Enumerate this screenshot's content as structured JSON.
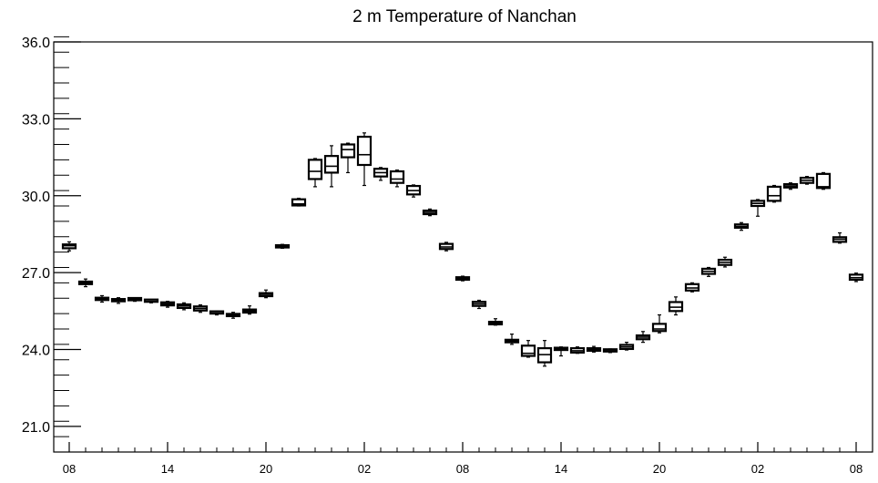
{
  "chart_data": {
    "type": "box",
    "title": "2 m Temperature of Nanchan",
    "xlabel": "",
    "ylabel": "",
    "ylim": [
      20.0,
      36.0
    ],
    "y_ticks": [
      {
        "value": 21.0,
        "label": "21.0"
      },
      {
        "value": 24.0,
        "label": "24.0"
      },
      {
        "value": 27.0,
        "label": "27.0"
      },
      {
        "value": 30.0,
        "label": "30.0"
      },
      {
        "value": 33.0,
        "label": "33.0"
      },
      {
        "value": 36.0,
        "label": "36.0"
      }
    ],
    "y_minor_step": 0.6,
    "x_range": [
      0,
      49
    ],
    "x_ticks": [
      {
        "index": 0,
        "label": "08"
      },
      {
        "index": 6,
        "label": "14"
      },
      {
        "index": 12,
        "label": "20"
      },
      {
        "index": 18,
        "label": "02"
      },
      {
        "index": 24,
        "label": "08"
      },
      {
        "index": 30,
        "label": "14"
      },
      {
        "index": 36,
        "label": "20"
      },
      {
        "index": 42,
        "label": "02"
      },
      {
        "index": 48,
        "label": "08"
      }
    ],
    "boxes": [
      {
        "x": 0,
        "min": 27.85,
        "q1": 27.95,
        "median": 28.05,
        "q3": 28.1,
        "max": 28.2
      },
      {
        "x": 1,
        "min": 26.45,
        "q1": 26.55,
        "median": 26.6,
        "q3": 26.65,
        "max": 26.75
      },
      {
        "x": 2,
        "min": 25.85,
        "q1": 25.93,
        "median": 25.98,
        "q3": 26.02,
        "max": 26.1
      },
      {
        "x": 3,
        "min": 25.8,
        "q1": 25.88,
        "median": 25.92,
        "q3": 25.96,
        "max": 26.02
      },
      {
        "x": 4,
        "min": 25.88,
        "q1": 25.92,
        "median": 25.95,
        "q3": 25.98,
        "max": 26.02
      },
      {
        "x": 5,
        "min": 25.82,
        "q1": 25.86,
        "median": 25.88,
        "q3": 25.9,
        "max": 25.94
      },
      {
        "x": 6,
        "min": 25.65,
        "q1": 25.72,
        "median": 25.78,
        "q3": 25.84,
        "max": 25.88
      },
      {
        "x": 7,
        "min": 25.55,
        "q1": 25.62,
        "median": 25.7,
        "q3": 25.76,
        "max": 25.82
      },
      {
        "x": 8,
        "min": 25.45,
        "q1": 25.52,
        "median": 25.6,
        "q3": 25.68,
        "max": 25.74
      },
      {
        "x": 9,
        "min": 25.35,
        "q1": 25.4,
        "median": 25.42,
        "q3": 25.45,
        "max": 25.5
      },
      {
        "x": 10,
        "min": 25.22,
        "q1": 25.3,
        "median": 25.34,
        "q3": 25.38,
        "max": 25.45
      },
      {
        "x": 11,
        "min": 25.38,
        "q1": 25.44,
        "median": 25.5,
        "q3": 25.56,
        "max": 25.7
      },
      {
        "x": 12,
        "min": 26.02,
        "q1": 26.08,
        "median": 26.15,
        "q3": 26.2,
        "max": 26.32
      },
      {
        "x": 13,
        "min": 27.95,
        "q1": 27.98,
        "median": 28.02,
        "q3": 28.06,
        "max": 28.1
      },
      {
        "x": 14,
        "min": 29.6,
        "q1": 29.62,
        "median": 29.68,
        "q3": 29.86,
        "max": 29.9
      },
      {
        "x": 15,
        "min": 30.35,
        "q1": 30.65,
        "median": 30.95,
        "q3": 31.4,
        "max": 31.45
      },
      {
        "x": 16,
        "min": 30.35,
        "q1": 30.9,
        "median": 31.15,
        "q3": 31.55,
        "max": 31.95
      },
      {
        "x": 17,
        "min": 30.9,
        "q1": 31.5,
        "median": 31.8,
        "q3": 32.0,
        "max": 32.05
      },
      {
        "x": 18,
        "min": 30.4,
        "q1": 31.2,
        "median": 31.6,
        "q3": 32.3,
        "max": 32.45
      },
      {
        "x": 19,
        "min": 30.6,
        "q1": 30.75,
        "median": 30.9,
        "q3": 31.05,
        "max": 31.1
      },
      {
        "x": 20,
        "min": 30.35,
        "q1": 30.5,
        "median": 30.65,
        "q3": 30.95,
        "max": 31.0
      },
      {
        "x": 21,
        "min": 29.95,
        "q1": 30.05,
        "median": 30.2,
        "q3": 30.38,
        "max": 30.42
      },
      {
        "x": 22,
        "min": 29.22,
        "q1": 29.28,
        "median": 29.35,
        "q3": 29.42,
        "max": 29.48
      },
      {
        "x": 23,
        "min": 27.85,
        "q1": 27.92,
        "median": 28.0,
        "q3": 28.12,
        "max": 28.18
      },
      {
        "x": 24,
        "min": 26.68,
        "q1": 26.72,
        "median": 26.78,
        "q3": 26.82,
        "max": 26.86
      },
      {
        "x": 25,
        "min": 25.6,
        "q1": 25.7,
        "median": 25.78,
        "q3": 25.86,
        "max": 25.92
      },
      {
        "x": 26,
        "min": 24.95,
        "q1": 24.98,
        "median": 25.03,
        "q3": 25.08,
        "max": 25.2
      },
      {
        "x": 27,
        "min": 24.2,
        "q1": 24.28,
        "median": 24.33,
        "q3": 24.38,
        "max": 24.6
      },
      {
        "x": 28,
        "min": 23.7,
        "q1": 23.75,
        "median": 23.85,
        "q3": 24.15,
        "max": 24.35
      },
      {
        "x": 29,
        "min": 23.35,
        "q1": 23.5,
        "median": 23.8,
        "q3": 24.05,
        "max": 24.35
      },
      {
        "x": 30,
        "min": 23.75,
        "q1": 23.98,
        "median": 24.02,
        "q3": 24.05,
        "max": 24.1
      },
      {
        "x": 31,
        "min": 23.85,
        "q1": 23.88,
        "median": 23.95,
        "q3": 24.05,
        "max": 24.1
      },
      {
        "x": 32,
        "min": 23.9,
        "q1": 23.95,
        "median": 24.0,
        "q3": 24.05,
        "max": 24.12
      },
      {
        "x": 33,
        "min": 23.88,
        "q1": 23.92,
        "median": 23.95,
        "q3": 23.98,
        "max": 24.02
      },
      {
        "x": 34,
        "min": 23.98,
        "q1": 24.02,
        "median": 24.1,
        "q3": 24.18,
        "max": 24.28
      },
      {
        "x": 35,
        "min": 24.28,
        "q1": 24.4,
        "median": 24.48,
        "q3": 24.55,
        "max": 24.7
      },
      {
        "x": 36,
        "min": 24.65,
        "q1": 24.72,
        "median": 24.8,
        "q3": 25.0,
        "max": 25.35
      },
      {
        "x": 37,
        "min": 25.35,
        "q1": 25.5,
        "median": 25.65,
        "q3": 25.85,
        "max": 26.05
      },
      {
        "x": 38,
        "min": 26.25,
        "q1": 26.3,
        "median": 26.4,
        "q3": 26.55,
        "max": 26.6
      },
      {
        "x": 39,
        "min": 26.85,
        "q1": 26.95,
        "median": 27.05,
        "q3": 27.15,
        "max": 27.2
      },
      {
        "x": 40,
        "min": 27.22,
        "q1": 27.3,
        "median": 27.4,
        "q3": 27.5,
        "max": 27.6
      },
      {
        "x": 41,
        "min": 28.65,
        "q1": 28.75,
        "median": 28.8,
        "q3": 28.88,
        "max": 28.95
      },
      {
        "x": 42,
        "min": 29.2,
        "q1": 29.6,
        "median": 29.7,
        "q3": 29.8,
        "max": 29.85
      },
      {
        "x": 43,
        "min": 29.75,
        "q1": 29.8,
        "median": 30.0,
        "q3": 30.35,
        "max": 30.4
      },
      {
        "x": 44,
        "min": 30.25,
        "q1": 30.32,
        "median": 30.38,
        "q3": 30.45,
        "max": 30.5
      },
      {
        "x": 45,
        "min": 30.45,
        "q1": 30.5,
        "median": 30.6,
        "q3": 30.7,
        "max": 30.75
      },
      {
        "x": 46,
        "min": 30.25,
        "q1": 30.3,
        "median": 30.35,
        "q3": 30.85,
        "max": 30.9
      },
      {
        "x": 47,
        "min": 28.15,
        "q1": 28.2,
        "median": 28.3,
        "q3": 28.38,
        "max": 28.55
      },
      {
        "x": 48,
        "min": 26.65,
        "q1": 26.72,
        "median": 26.8,
        "q3": 26.92,
        "max": 26.98
      }
    ],
    "grid": false,
    "colors": {
      "stroke": "#000000",
      "background": "#ffffff"
    }
  }
}
